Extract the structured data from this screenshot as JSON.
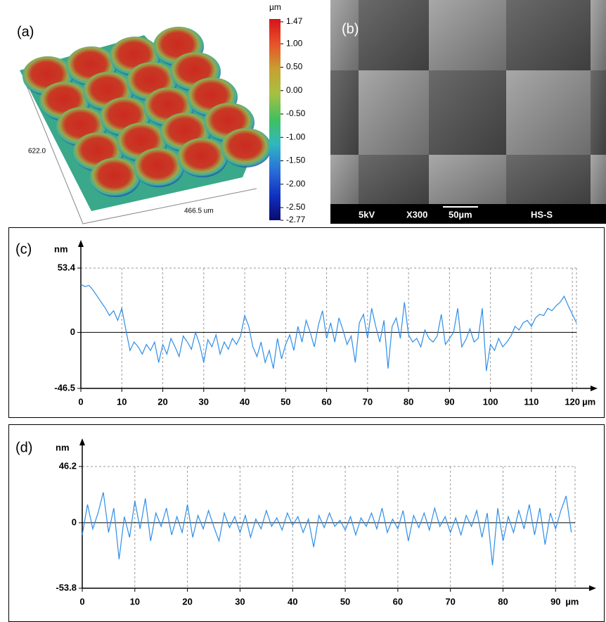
{
  "panel_a": {
    "label": "(a)",
    "axis_labels": [
      "622.0",
      "466.5 um"
    ]
  },
  "panel_b": {
    "label": "(b)",
    "info": [
      "5kV",
      "X300",
      "50µm",
      "HS-S"
    ]
  },
  "chart_data": [
    {
      "type": "colorbar",
      "unit": "µm",
      "ylim": [
        -2.77,
        1.47
      ],
      "yticks": [
        1.47,
        {
          "value": 1,
          "label": "1.00"
        },
        {
          "value": 0.5,
          "label": "0.50"
        },
        {
          "value": 0,
          "label": "0.00"
        },
        {
          "value": -0.5,
          "label": "-0.50"
        },
        {
          "value": -1,
          "label": "-1.00"
        },
        {
          "value": -1.5,
          "label": "-1.50"
        },
        {
          "value": -2,
          "label": "-2.00"
        },
        {
          "value": -2.5,
          "label": "-2.50"
        },
        -2.77
      ]
    },
    {
      "type": "line",
      "label": "(c)",
      "y_unit": "nm",
      "x_unit": "µm",
      "color": "#2e8ee8",
      "x": [
        0,
        1,
        2,
        3,
        4,
        5,
        6,
        7,
        8,
        9,
        10,
        11,
        12,
        13,
        14,
        15,
        16,
        17,
        18,
        19,
        20,
        21,
        22,
        23,
        24,
        25,
        26,
        27,
        28,
        29,
        30,
        31,
        32,
        33,
        34,
        35,
        36,
        37,
        38,
        39,
        40,
        41,
        42,
        43,
        44,
        45,
        46,
        47,
        48,
        49,
        50,
        51,
        52,
        53,
        54,
        55,
        56,
        57,
        58,
        59,
        60,
        61,
        62,
        63,
        64,
        65,
        66,
        67,
        68,
        69,
        70,
        71,
        72,
        73,
        74,
        75,
        76,
        77,
        78,
        79,
        80,
        81,
        82,
        83,
        84,
        85,
        86,
        87,
        88,
        89,
        90,
        91,
        92,
        93,
        94,
        95,
        96,
        97,
        98,
        99,
        100,
        101,
        102,
        103,
        104,
        105,
        106,
        107,
        108,
        109,
        110,
        111,
        112,
        113,
        114,
        115,
        116,
        117,
        118,
        119,
        120,
        121
      ],
      "values": [
        40,
        38,
        39,
        35,
        30,
        25,
        20,
        14,
        18,
        10,
        20,
        2,
        -15,
        -8,
        -12,
        -18,
        -10,
        -15,
        -8,
        -25,
        -10,
        -18,
        -5,
        -12,
        -20,
        -3,
        -8,
        -14,
        0,
        -10,
        -25,
        -6,
        -12,
        -2,
        -18,
        -8,
        -14,
        -5,
        -10,
        -3,
        14,
        5,
        -12,
        -20,
        -8,
        -25,
        -15,
        -30,
        -5,
        -22,
        -10,
        -2,
        -15,
        5,
        -8,
        10,
        0,
        -12,
        6,
        18,
        -5,
        8,
        -8,
        12,
        2,
        -10,
        -3,
        -25,
        8,
        15,
        -5,
        20,
        5,
        -8,
        10,
        -30,
        5,
        12,
        -5,
        25,
        -2,
        -8,
        -5,
        -12,
        2,
        -5,
        -8,
        -3,
        15,
        -10,
        -5,
        0,
        20,
        -12,
        -6,
        3,
        -8,
        -5,
        20,
        -32,
        -10,
        -15,
        -5,
        -12,
        -8,
        -3,
        5,
        2,
        8,
        10,
        5,
        12,
        15,
        14,
        20,
        18,
        22,
        25,
        30,
        22,
        15,
        8
      ],
      "xlim": [
        0,
        121
      ],
      "ylim": [
        -46.5,
        53.4
      ],
      "xticks": [
        0,
        10,
        20,
        30,
        40,
        50,
        60,
        70,
        80,
        90,
        100,
        110,
        120
      ],
      "yticks": [
        53.4,
        0,
        -46.5
      ],
      "grid": true
    },
    {
      "type": "line",
      "label": "(d)",
      "y_unit": "nm",
      "x_unit": "µm",
      "color": "#2e8ee8",
      "x": [
        0,
        1,
        2,
        3,
        4,
        5,
        6,
        7,
        8,
        9,
        10,
        11,
        12,
        13,
        14,
        15,
        16,
        17,
        18,
        19,
        20,
        21,
        22,
        23,
        24,
        25,
        26,
        27,
        28,
        29,
        30,
        31,
        32,
        33,
        34,
        35,
        36,
        37,
        38,
        39,
        40,
        41,
        42,
        43,
        44,
        45,
        46,
        47,
        48,
        49,
        50,
        51,
        52,
        53,
        54,
        55,
        56,
        57,
        58,
        59,
        60,
        61,
        62,
        63,
        64,
        65,
        66,
        67,
        68,
        69,
        70,
        71,
        72,
        73,
        74,
        75,
        76,
        77,
        78,
        79,
        80,
        81,
        82,
        83,
        84,
        85,
        86,
        87,
        88,
        89,
        90,
        91,
        92,
        93
      ],
      "values": [
        -10,
        15,
        -5,
        8,
        25,
        -8,
        12,
        -30,
        5,
        -12,
        18,
        -5,
        20,
        -15,
        8,
        -3,
        12,
        -10,
        5,
        -8,
        15,
        -12,
        6,
        -5,
        10,
        -3,
        -15,
        8,
        -4,
        5,
        -8,
        6,
        -12,
        3,
        -5,
        10,
        -3,
        4,
        -6,
        8,
        -2,
        5,
        -8,
        3,
        -20,
        6,
        -4,
        8,
        -3,
        2,
        -6,
        5,
        -10,
        4,
        -3,
        8,
        -5,
        12,
        -8,
        3,
        -5,
        10,
        -15,
        6,
        -4,
        8,
        -6,
        12,
        -3,
        5,
        -8,
        4,
        -10,
        6,
        -3,
        10,
        -12,
        8,
        -35,
        12,
        -15,
        5,
        -8,
        10,
        -5,
        15,
        -10,
        12,
        -18,
        8,
        -5,
        10,
        22,
        -8
      ],
      "xlim": [
        0,
        93.7
      ],
      "ylim": [
        -53.8,
        46.2
      ],
      "xticks": [
        0,
        10,
        20,
        30,
        40,
        50,
        60,
        70,
        80,
        90
      ],
      "yticks": [
        46.2,
        0,
        -53.8
      ],
      "grid": true
    }
  ]
}
